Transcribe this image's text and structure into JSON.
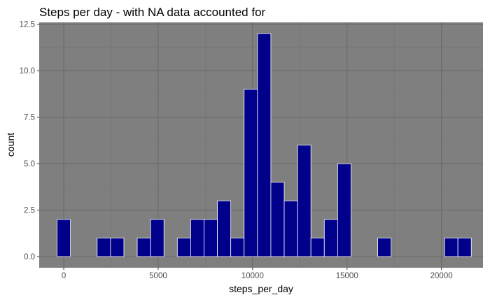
{
  "chart_data": {
    "type": "bar",
    "title": "Steps per day - with NA data accounted for",
    "xlabel": "steps_per_day",
    "ylabel": "count",
    "xlim": [
      -1300,
      22200
    ],
    "ylim": [
      -0.6,
      12.6
    ],
    "x_ticks": [
      0,
      5000,
      10000,
      15000,
      20000
    ],
    "x_tick_labels": [
      "0",
      "5000",
      "10000",
      "15000",
      "20000"
    ],
    "y_ticks": [
      0,
      2.5,
      5,
      7.5,
      10,
      12.5
    ],
    "y_tick_labels": [
      "0.0",
      "2.5",
      "5.0",
      "7.5",
      "10.0",
      "12.5"
    ],
    "bin_width": 707.5,
    "bin_start": -353.75,
    "bins": [
      {
        "x": 0,
        "count": 2
      },
      {
        "x": 707.5,
        "count": 0
      },
      {
        "x": 1415,
        "count": 0
      },
      {
        "x": 2122.5,
        "count": 1
      },
      {
        "x": 2830,
        "count": 1
      },
      {
        "x": 3537.5,
        "count": 0
      },
      {
        "x": 4245,
        "count": 1
      },
      {
        "x": 4952.5,
        "count": 2
      },
      {
        "x": 5660,
        "count": 0
      },
      {
        "x": 6367.5,
        "count": 1
      },
      {
        "x": 7075,
        "count": 2
      },
      {
        "x": 7782.5,
        "count": 2
      },
      {
        "x": 8490,
        "count": 3
      },
      {
        "x": 9197.5,
        "count": 1
      },
      {
        "x": 9905,
        "count": 9
      },
      {
        "x": 10612.5,
        "count": 12
      },
      {
        "x": 11320,
        "count": 4
      },
      {
        "x": 12027.5,
        "count": 3
      },
      {
        "x": 12735,
        "count": 6
      },
      {
        "x": 13442.5,
        "count": 1
      },
      {
        "x": 14150,
        "count": 2
      },
      {
        "x": 14857.5,
        "count": 5
      },
      {
        "x": 15565,
        "count": 0
      },
      {
        "x": 16272.5,
        "count": 0
      },
      {
        "x": 16980,
        "count": 1
      },
      {
        "x": 17687.5,
        "count": 0
      },
      {
        "x": 18395,
        "count": 0
      },
      {
        "x": 19102.5,
        "count": 0
      },
      {
        "x": 19810,
        "count": 0
      },
      {
        "x": 20517.5,
        "count": 1
      },
      {
        "x": 21225,
        "count": 1
      }
    ],
    "colors": {
      "panel_background": "#7f7f7f",
      "major_grid": "#6b6b6b",
      "minor_grid": "#747474",
      "bar_fill": "#00008b",
      "bar_outline": "#ffffff",
      "tick_text": "#4d4d4d",
      "text": "#000000"
    },
    "grid": true,
    "legend": "none"
  }
}
